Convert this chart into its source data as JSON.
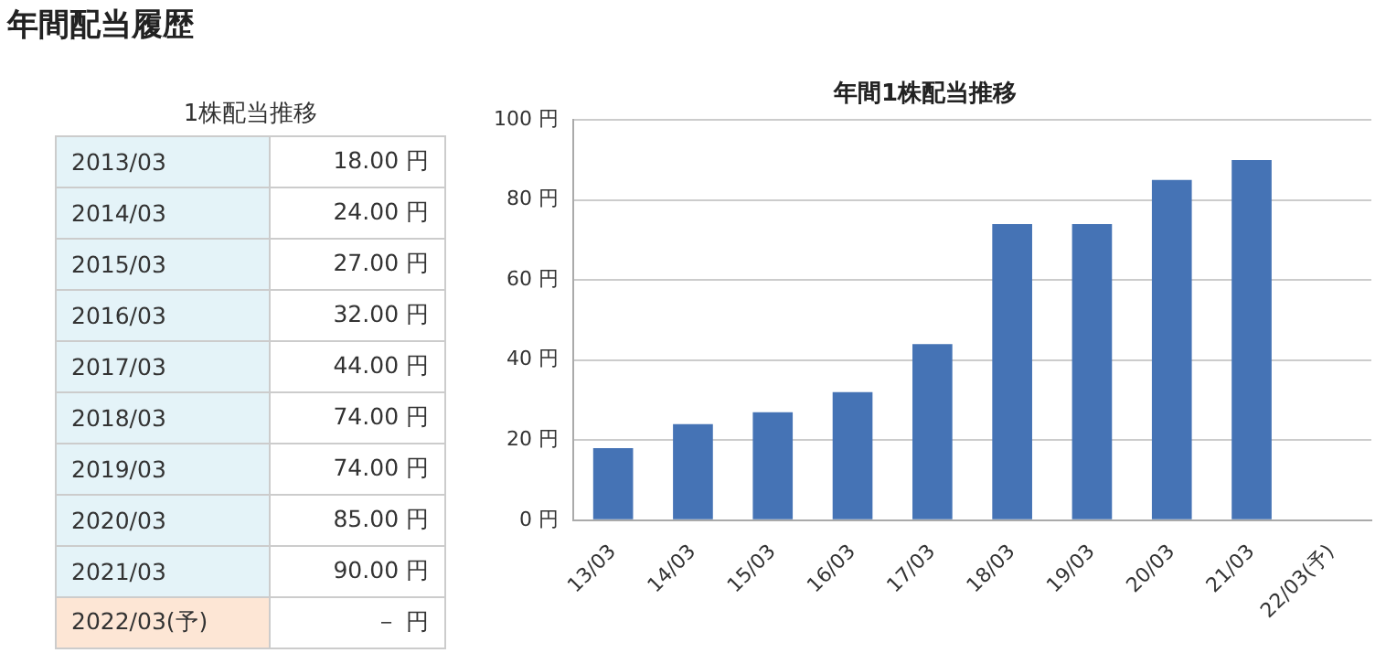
{
  "chart_data": [
    {
      "type": "other",
      "title": "年間配当履歴",
      "subtitle": "1株配当推移",
      "annotations": [
        "2013/03",
        "18.00 円",
        "2014/03",
        "24.00 円",
        "2015/03",
        "27.00 円",
        "2016/03",
        "32.00 円",
        "2017/03",
        "44.00 円",
        "2018/03",
        "74.00 円",
        "2019/03",
        "74.00 円",
        "2020/03",
        "85.00 円",
        "2021/03",
        "90.00 円",
        "2022/03(予)",
        "－ 円"
      ]
    },
    {
      "type": "bar",
      "title": "年間1株配当推移",
      "categories": [
        "13/03",
        "14/03",
        "15/03",
        "16/03",
        "17/03",
        "18/03",
        "19/03",
        "20/03",
        "21/03",
        "22/03(予)"
      ],
      "values": [
        18,
        24,
        27,
        32,
        44,
        74,
        74,
        85,
        90,
        null
      ],
      "color": "#4573b5",
      "ylim": [
        0,
        100
      ],
      "yticks": [
        {
          "value": 0,
          "label": "0 円"
        },
        {
          "value": 20,
          "label": "20 円"
        },
        {
          "value": 40,
          "label": "40 円"
        },
        {
          "value": 60,
          "label": "60 円"
        },
        {
          "value": 80,
          "label": "80 円"
        },
        {
          "value": 100,
          "label": "100 円"
        }
      ],
      "grid": "y",
      "legend": false
    }
  ]
}
